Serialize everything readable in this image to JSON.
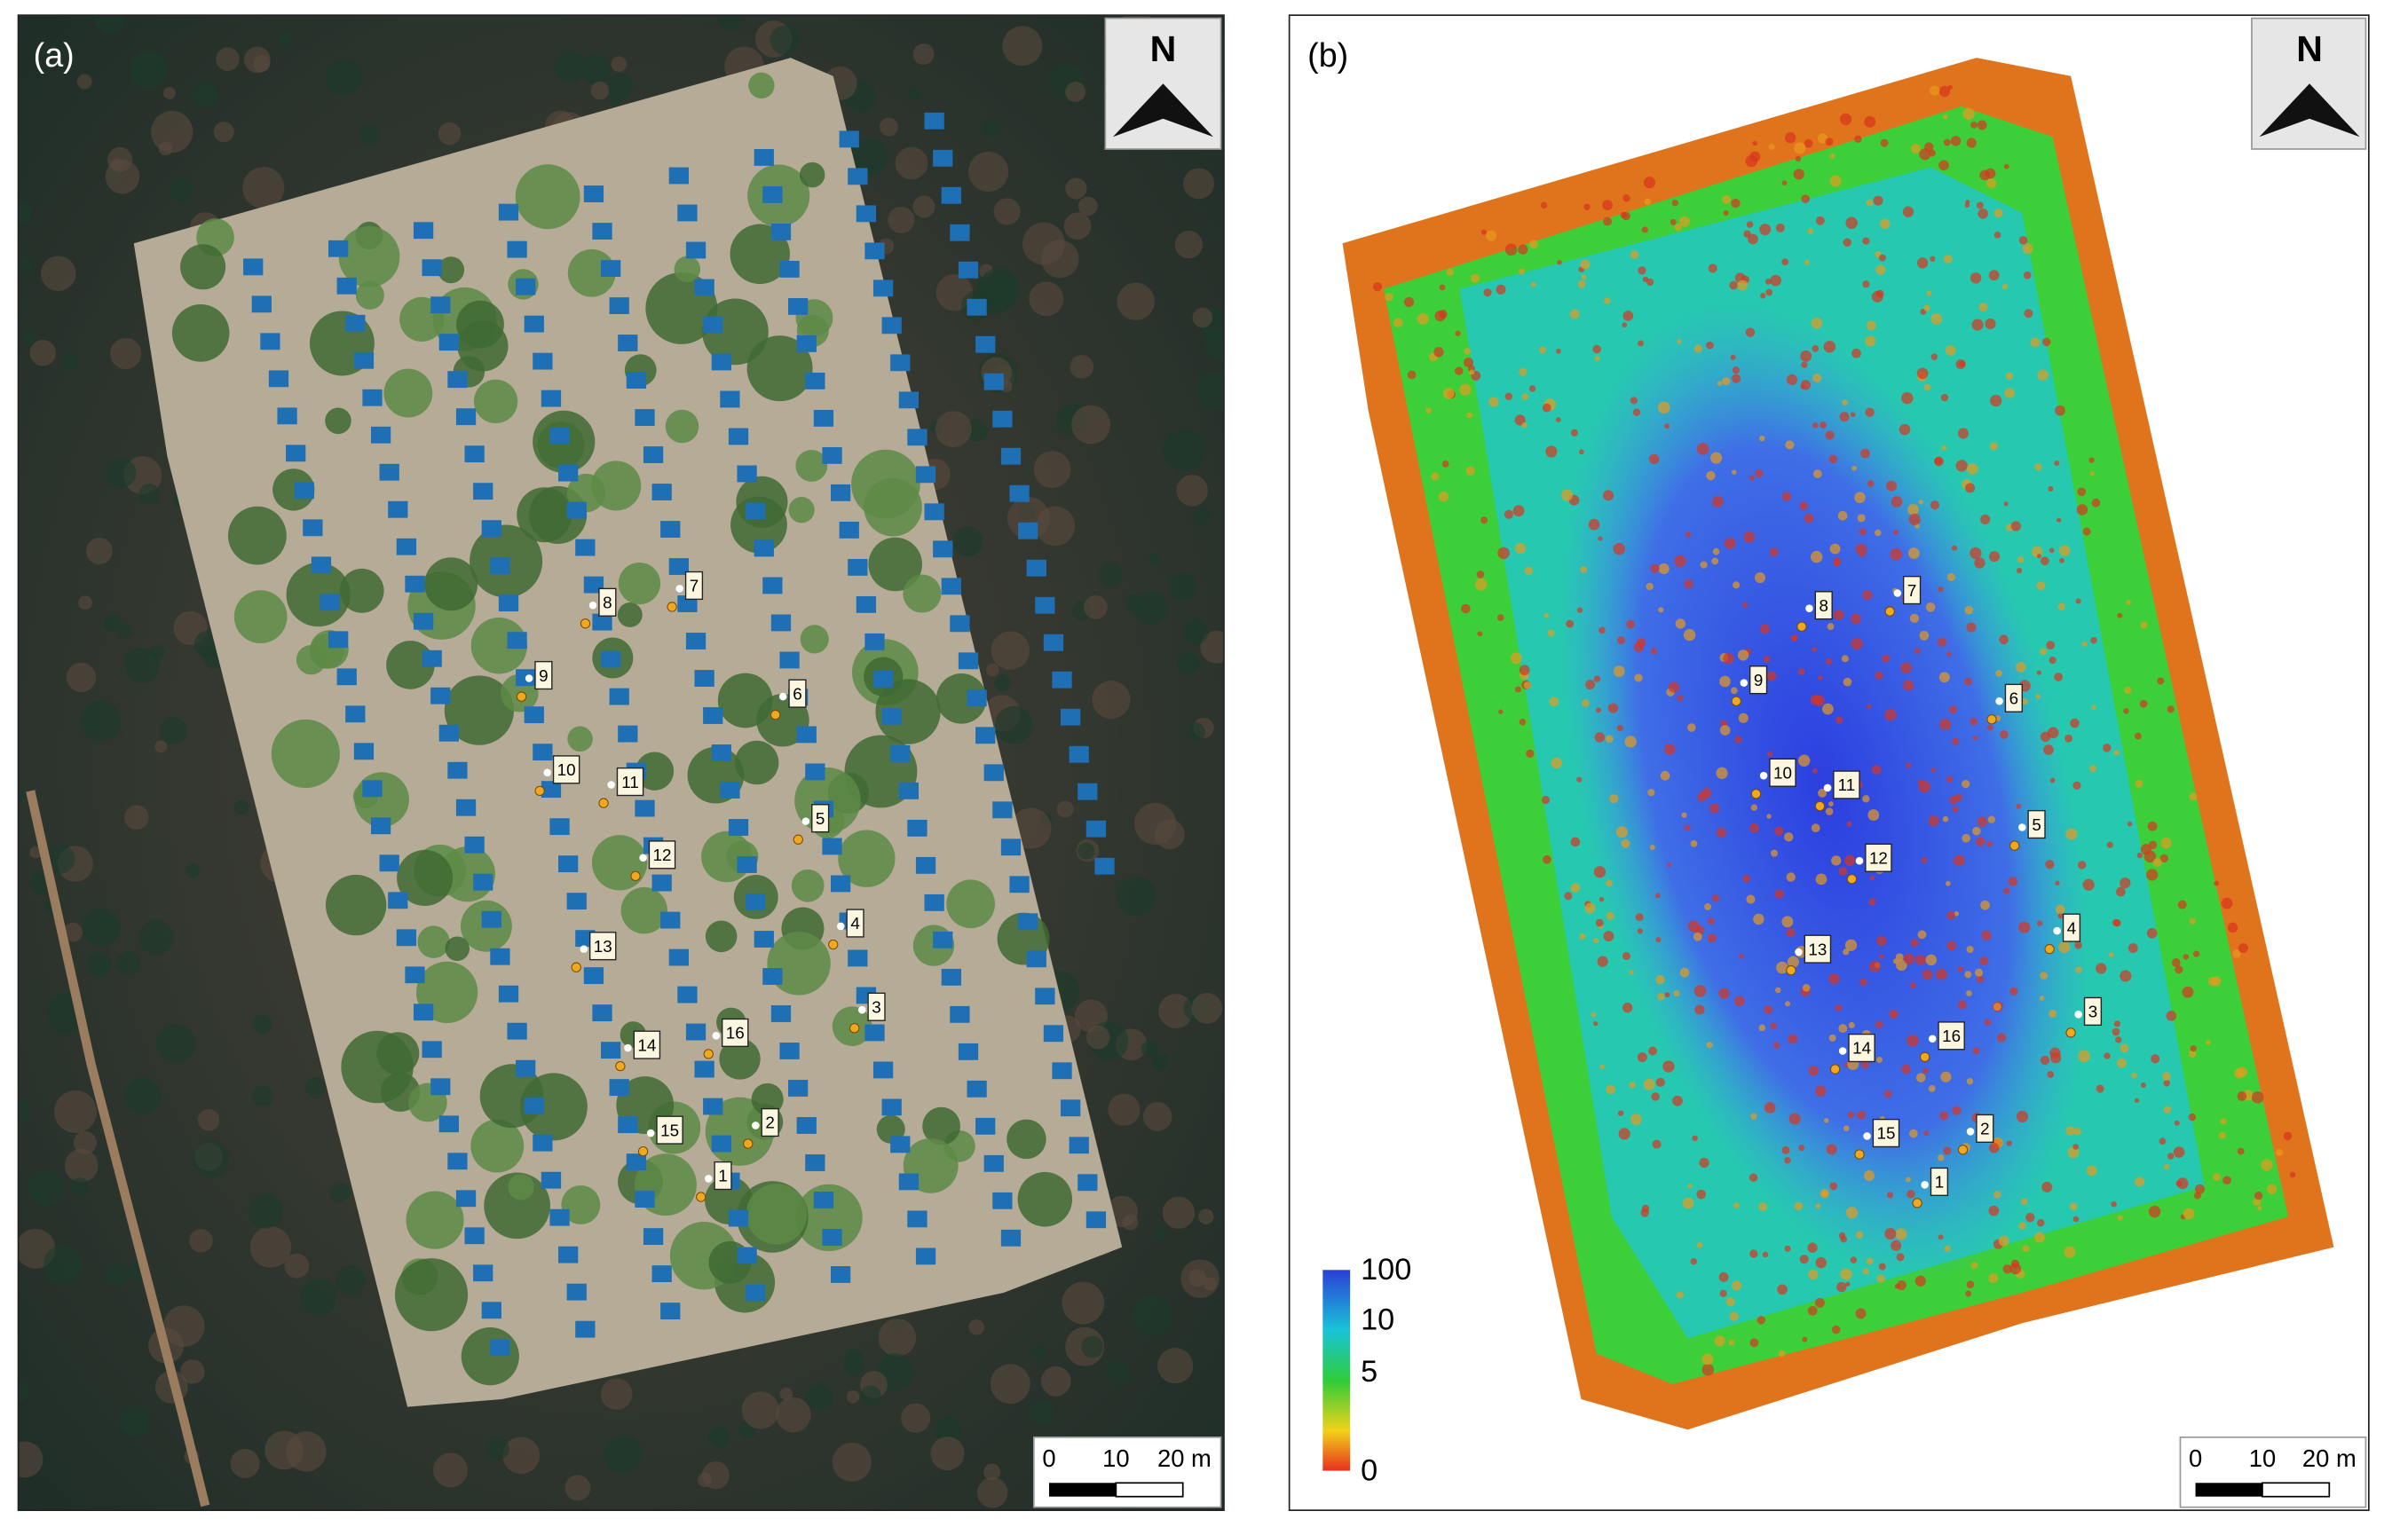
{
  "panels": [
    {
      "label": "(a)",
      "north": "N",
      "scale_bar": [
        "0",
        "10",
        "20 m"
      ],
      "points": [
        "1",
        "2",
        "3",
        "4",
        "5",
        "6",
        "7",
        "8",
        "9",
        "10",
        "11",
        "12",
        "13",
        "14",
        "15",
        "16"
      ]
    },
    {
      "label": "(b)",
      "north": "N",
      "scale_bar": [
        "0",
        "10",
        "20 m"
      ],
      "points": [
        "1",
        "2",
        "3",
        "4",
        "5",
        "6",
        "7",
        "8",
        "9",
        "10",
        "11",
        "12",
        "13",
        "14",
        "15",
        "16"
      ],
      "colorbar": [
        "100",
        "10",
        "5",
        "0"
      ]
    }
  ]
}
